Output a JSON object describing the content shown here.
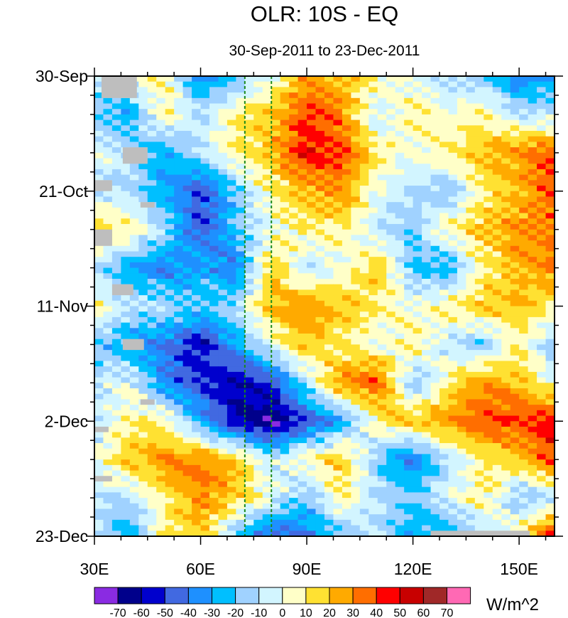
{
  "chart_data": {
    "type": "heatmap",
    "title": "OLR: 10S - EQ",
    "subtitle": "30-Sep-2011 to 23-Dec-2011",
    "xlabel": "",
    "ylabel": "",
    "x_range": [
      30,
      160
    ],
    "y_range_days": [
      0,
      84
    ],
    "x_ticks": [
      {
        "value": 30,
        "label": "30E"
      },
      {
        "value": 60,
        "label": "60E"
      },
      {
        "value": 90,
        "label": "90E"
      },
      {
        "value": 120,
        "label": "120E"
      },
      {
        "value": 150,
        "label": "150E"
      }
    ],
    "y_ticks": [
      {
        "day": 0,
        "label": "30-Sep"
      },
      {
        "day": 21,
        "label": "21-Oct"
      },
      {
        "day": 42,
        "label": "11-Nov"
      },
      {
        "day": 63,
        "label": "2-Dec"
      },
      {
        "day": 84,
        "label": "23-Dec"
      }
    ],
    "reference_lines_lon": [
      72.5,
      80
    ],
    "reference_line_color": "#1a8a1a",
    "lon": [
      30,
      40,
      50,
      60,
      70,
      80,
      90,
      100,
      110,
      120,
      130,
      140,
      150,
      160
    ],
    "days": [
      0,
      7,
      14,
      21,
      28,
      35,
      42,
      49,
      56,
      63,
      70,
      77,
      84
    ],
    "values": [
      [
        -10,
        0,
        10,
        -40,
        -20,
        0,
        30,
        20,
        10,
        0,
        -10,
        -20,
        -40,
        -30
      ],
      [
        -20,
        -30,
        10,
        -10,
        10,
        20,
        40,
        30,
        -10,
        10,
        0,
        10,
        -10,
        -10
      ],
      [
        0,
        -10,
        -30,
        -10,
        10,
        20,
        50,
        40,
        10,
        0,
        10,
        20,
        30,
        40
      ],
      [
        -10,
        -10,
        -30,
        -50,
        -20,
        10,
        20,
        30,
        0,
        -10,
        -20,
        10,
        20,
        40
      ],
      [
        20,
        10,
        -10,
        -50,
        -20,
        0,
        10,
        10,
        -10,
        -20,
        10,
        20,
        30,
        30
      ],
      [
        -10,
        -30,
        -40,
        -30,
        -40,
        20,
        -10,
        0,
        20,
        -20,
        -30,
        10,
        20,
        30
      ],
      [
        10,
        -10,
        -10,
        -20,
        -10,
        20,
        30,
        20,
        10,
        0,
        10,
        20,
        20,
        10
      ],
      [
        -20,
        -30,
        -40,
        -60,
        -30,
        0,
        20,
        10,
        0,
        10,
        -10,
        -20,
        10,
        -20
      ],
      [
        -10,
        0,
        -40,
        -50,
        -60,
        -50,
        -10,
        30,
        40,
        -20,
        10,
        30,
        20,
        0
      ],
      [
        -10,
        10,
        10,
        -30,
        -60,
        -70,
        -50,
        -30,
        10,
        20,
        30,
        40,
        40,
        50
      ],
      [
        0,
        20,
        30,
        30,
        20,
        -10,
        10,
        20,
        -20,
        -40,
        -10,
        10,
        20,
        40
      ],
      [
        -10,
        -10,
        10,
        30,
        20,
        0,
        -20,
        10,
        -10,
        -20,
        0,
        10,
        -20,
        -10
      ],
      [
        -10,
        -30,
        10,
        20,
        -20,
        -50,
        -40,
        -20,
        -10,
        -30,
        -30,
        -10,
        10,
        50
      ]
    ],
    "missing": [
      [
        32,
        42,
        0,
        4
      ],
      [
        38,
        45,
        13,
        16
      ],
      [
        30,
        35,
        19,
        21
      ],
      [
        43,
        47,
        23,
        24
      ],
      [
        30,
        35,
        28,
        31
      ],
      [
        35,
        41,
        38,
        40
      ],
      [
        38,
        44,
        48,
        50
      ],
      [
        43,
        47,
        59,
        60
      ],
      [
        30,
        34,
        64,
        65
      ],
      [
        30,
        35,
        73,
        74
      ],
      [
        125,
        153,
        83,
        84
      ]
    ],
    "missing_color": "#bebebe",
    "colorbar": {
      "unit": "W/m^2",
      "levels": [
        "-70",
        "-60",
        "-50",
        "-40",
        "-30",
        "-20",
        "-10",
        "0",
        "10",
        "20",
        "30",
        "40",
        "50",
        "60",
        "70"
      ],
      "colors": [
        "#8a2be2",
        "#00008b",
        "#0000cd",
        "#4169e1",
        "#1e90ff",
        "#00bfff",
        "#a0d2ff",
        "#d2f5ff",
        "#ffffc8",
        "#ffe132",
        "#ffaa00",
        "#ff6e00",
        "#ff0000",
        "#c80000",
        "#a02828",
        "#ff69b4"
      ]
    }
  }
}
